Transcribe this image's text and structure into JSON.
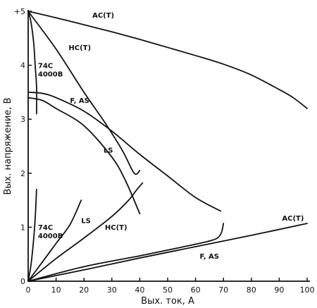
{
  "chart_data": {
    "type": "line",
    "title": "",
    "xlabel": "Вых. ток, А",
    "ylabel": "Вых. напряжение, В",
    "xlim": [
      0,
      100
    ],
    "ylim": [
      0,
      5
    ],
    "x_ticks": [
      "0",
      "10",
      "20",
      "30",
      "40",
      "50",
      "60",
      "70",
      "80",
      "90",
      "100"
    ],
    "y_ticks": [
      "0",
      "1",
      "2",
      "3",
      "4",
      "+5"
    ],
    "grid": false,
    "series": [
      {
        "name": "AC(T)",
        "label_lines": [
          "AC(T)"
        ],
        "label_at": [
          23,
          4.88
        ],
        "points": [
          [
            0,
            5
          ],
          [
            10,
            4.88
          ],
          [
            20,
            4.75
          ],
          [
            30,
            4.62
          ],
          [
            40,
            4.48
          ],
          [
            50,
            4.33
          ],
          [
            60,
            4.18
          ],
          [
            70,
            4.02
          ],
          [
            80,
            3.82
          ],
          [
            90,
            3.55
          ],
          [
            95,
            3.4
          ],
          [
            100,
            3.2
          ]
        ]
      },
      {
        "name": "HC(T)",
        "label_lines": [
          "HC(T)"
        ],
        "label_at": [
          14.5,
          4.28
        ],
        "points": [
          [
            0,
            5
          ],
          [
            10,
            4.3
          ],
          [
            20,
            3.5
          ],
          [
            28,
            2.9
          ],
          [
            34,
            2.4
          ],
          [
            38,
            2.0
          ],
          [
            40,
            2.05
          ]
        ]
      },
      {
        "name": "74C 4000B",
        "label_lines": [
          "74C",
          "4000B"
        ],
        "label_at": [
          3.5,
          3.95
        ],
        "points": [
          [
            0,
            5
          ],
          [
            1,
            4.8
          ],
          [
            2,
            4.4
          ],
          [
            2.5,
            4.0
          ],
          [
            3,
            3.6
          ],
          [
            3,
            3.1
          ]
        ]
      },
      {
        "name": "F, AS",
        "label_lines": [
          "F, AS"
        ],
        "label_at": [
          15,
          3.3
        ],
        "points": [
          [
            0,
            3.5
          ],
          [
            5,
            3.48
          ],
          [
            10,
            3.4
          ],
          [
            20,
            3.15
          ],
          [
            30,
            2.78
          ],
          [
            40,
            2.35
          ],
          [
            50,
            1.95
          ],
          [
            60,
            1.55
          ],
          [
            69,
            1.3
          ]
        ]
      },
      {
        "name": "LS",
        "label_lines": [
          "LS"
        ],
        "label_at": [
          27,
          2.38
        ],
        "points": [
          [
            0,
            3.4
          ],
          [
            5,
            3.35
          ],
          [
            10,
            3.2
          ],
          [
            20,
            2.88
          ],
          [
            30,
            2.3
          ],
          [
            35,
            1.85
          ],
          [
            40,
            1.25
          ]
        ]
      },
      {
        "name": "AC(T)",
        "label_lines": [
          "AC(T)"
        ],
        "label_at": [
          91,
          1.12
        ],
        "points": [
          [
            0,
            0
          ],
          [
            20,
            0.21
          ],
          [
            40,
            0.43
          ],
          [
            60,
            0.64
          ],
          [
            80,
            0.85
          ],
          [
            100,
            1.07
          ]
        ]
      },
      {
        "name": "F, AS",
        "label_lines": [
          "F, AS"
        ],
        "label_at": [
          61.5,
          0.42
        ],
        "points": [
          [
            0,
            0
          ],
          [
            20,
            0.27
          ],
          [
            40,
            0.47
          ],
          [
            55,
            0.63
          ],
          [
            66,
            0.76
          ],
          [
            69,
            0.87
          ],
          [
            70,
            1.07
          ]
        ]
      },
      {
        "name": "HC(T)",
        "label_lines": [
          "HC(T)"
        ],
        "label_at": [
          27.5,
          0.95
        ],
        "points": [
          [
            0,
            0
          ],
          [
            10,
            0.42
          ],
          [
            20,
            0.8
          ],
          [
            30,
            1.2
          ],
          [
            36,
            1.5
          ],
          [
            39,
            1.7
          ],
          [
            41,
            1.82
          ]
        ]
      },
      {
        "name": "LS",
        "label_lines": [
          "LS"
        ],
        "label_at": [
          19,
          1.08
        ],
        "points": [
          [
            0,
            0
          ],
          [
            5,
            0.35
          ],
          [
            10,
            0.7
          ],
          [
            15,
            1.05
          ],
          [
            19,
            1.5
          ]
        ]
      },
      {
        "name": "74C 4000B",
        "label_lines": [
          "74C",
          "4000B"
        ],
        "label_at": [
          3.5,
          0.95
        ],
        "points": [
          [
            0,
            0
          ],
          [
            1,
            0.3
          ],
          [
            2,
            0.8
          ],
          [
            2.6,
            1.25
          ],
          [
            3,
            1.7
          ]
        ]
      }
    ]
  }
}
